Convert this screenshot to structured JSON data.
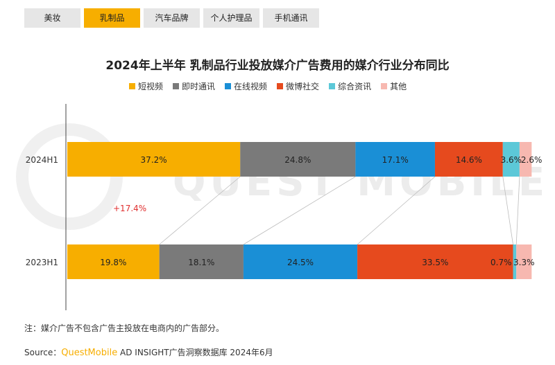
{
  "tabs": [
    {
      "label": "美妆",
      "active": false
    },
    {
      "label": "乳制品",
      "active": true
    },
    {
      "label": "汽车品牌",
      "active": false
    },
    {
      "label": "个人护理品",
      "active": false
    },
    {
      "label": "手机通讯",
      "active": false
    }
  ],
  "watermark": "QUEST MOBILE",
  "growth_annotation": "+17.4%",
  "footnote": "注：媒介广告不包含广告主投放在电商内的广告部分。",
  "source": {
    "prefix": "Source：",
    "brand": "QuestMobile",
    "rest": " AD INSIGHT广告洞察数据库 2024年6月"
  },
  "colors": {
    "accent": "#f7ae00",
    "tab_inactive": "#e6e6e6",
    "annotation": "#e03030"
  },
  "chart_data": {
    "type": "bar",
    "orientation": "horizontal-stacked-100",
    "title": "2024年上半年 乳制品行业投放媒介广告费用的媒介行业分布同比",
    "categories": [
      "2024H1",
      "2023H1"
    ],
    "series": [
      {
        "name": "短视频",
        "color": "#f7ae00",
        "values": [
          37.2,
          19.8
        ],
        "labels": [
          "37.2%",
          "19.8%"
        ]
      },
      {
        "name": "即时通讯",
        "color": "#7a7a7a",
        "values": [
          24.8,
          18.1
        ],
        "labels": [
          "24.8%",
          "18.1%"
        ]
      },
      {
        "name": "在线视频",
        "color": "#1a8fd6",
        "values": [
          17.1,
          24.5
        ],
        "labels": [
          "17.1%",
          "24.5%"
        ]
      },
      {
        "name": "微博社交",
        "color": "#e64a1e",
        "values": [
          14.6,
          33.5
        ],
        "labels": [
          "14.6%",
          "33.5%"
        ]
      },
      {
        "name": "综合资讯",
        "color": "#5cc8d8",
        "values": [
          3.6,
          0.7
        ],
        "labels": [
          "3.6%",
          "0.7%"
        ]
      },
      {
        "name": "其他",
        "color": "#f7b8b0",
        "values": [
          2.6,
          3.3
        ],
        "labels": [
          "2.6%",
          "3.3%"
        ]
      }
    ],
    "xlim": [
      0,
      100
    ],
    "legend_position": "top",
    "grid": false
  }
}
